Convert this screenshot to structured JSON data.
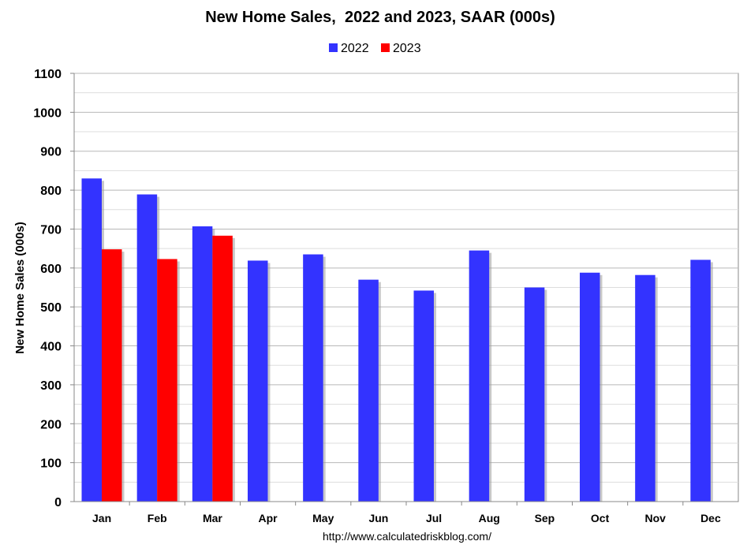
{
  "chart_data": {
    "type": "bar",
    "title": "New Home Sales,  2022 and 2023, SAAR (000s)",
    "xlabel": "",
    "ylabel": "New Home Sales (000s)",
    "categories": [
      "Jan",
      "Feb",
      "Mar",
      "Apr",
      "May",
      "Jun",
      "Jul",
      "Aug",
      "Sep",
      "Oct",
      "Nov",
      "Dec"
    ],
    "series": [
      {
        "name": "2022",
        "color": "#3333FF",
        "values": [
          830,
          789,
          707,
          619,
          635,
          570,
          542,
          645,
          550,
          588,
          582,
          621
        ]
      },
      {
        "name": "2023",
        "color": "#FF0000",
        "values": [
          648,
          623,
          683,
          null,
          null,
          null,
          null,
          null,
          null,
          null,
          null,
          null
        ]
      }
    ],
    "ylim": [
      0,
      1100
    ],
    "yticks": [
      0,
      100,
      200,
      300,
      400,
      500,
      600,
      700,
      800,
      900,
      1000,
      1100
    ],
    "grid": true,
    "legend_position": "top-center",
    "source": "http://www.calculatedriskblog.com/"
  }
}
